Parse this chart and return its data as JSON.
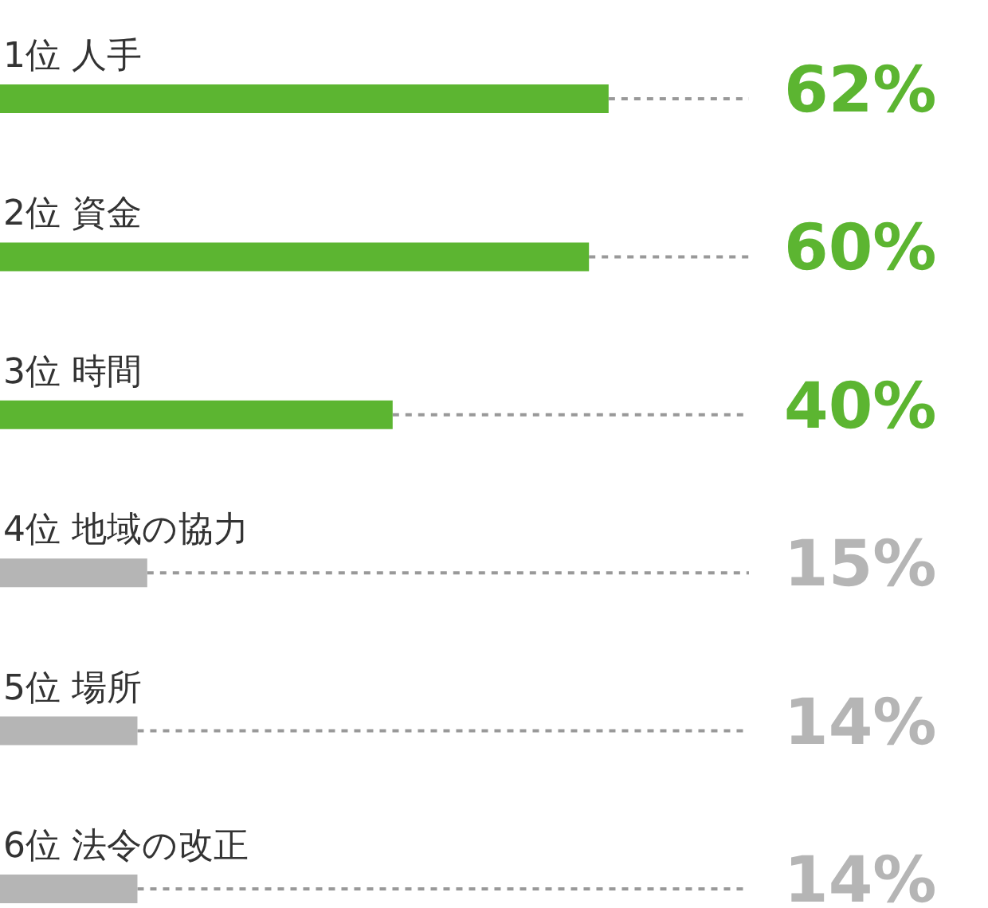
{
  "chart_data": {
    "type": "bar",
    "orientation": "horizontal",
    "categories": [
      "1位 人手",
      "2位 資金",
      "3位 時間",
      "4位 地域の協力",
      "5位 場所",
      "6位 法令の改正"
    ],
    "values": [
      62,
      60,
      40,
      15,
      14,
      14
    ],
    "colors": [
      "#5cb531",
      "#5cb531",
      "#5cb531",
      "#b5b5b5",
      "#b5b5b5",
      "#b5b5b5"
    ],
    "value_labels": [
      "62%",
      "60%",
      "40%",
      "15%",
      "14%",
      "14%"
    ],
    "xlim": [
      0,
      100
    ]
  }
}
